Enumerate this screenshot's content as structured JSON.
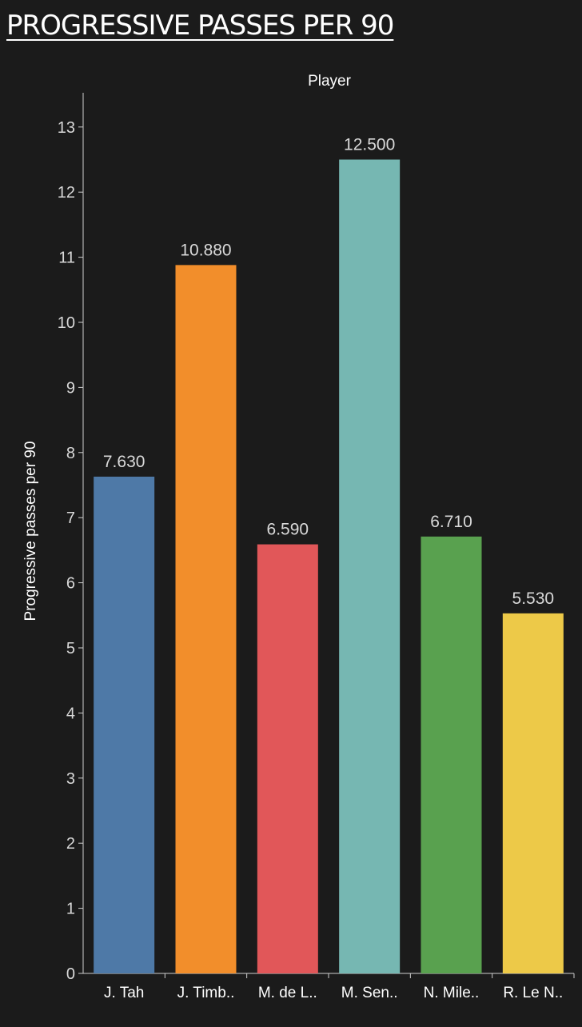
{
  "page": {
    "title": "PROGRESSIVE PASSES PER 90"
  },
  "chart_data": {
    "type": "bar",
    "title": "PROGRESSIVE PASSES PER 90",
    "xlabel": "Player",
    "ylabel": "Progressive passes per 90",
    "categories": [
      "J. Tah",
      "J. Timb..",
      "M. de L..",
      "M. Sen..",
      "N. Mile..",
      "R. Le N.."
    ],
    "values": [
      7.63,
      10.88,
      6.59,
      12.5,
      6.71,
      5.53
    ],
    "value_labels": [
      "7.630",
      "10.880",
      "6.590",
      "12.500",
      "6.710",
      "5.530"
    ],
    "colors": [
      "#4e79a7",
      "#f28e2b",
      "#e15759",
      "#76b7b2",
      "#59a14f",
      "#edc948"
    ],
    "ylim": [
      0,
      13.5
    ],
    "yticks": [
      0,
      1,
      2,
      3,
      4,
      5,
      6,
      7,
      8,
      9,
      10,
      11,
      12,
      13
    ],
    "grid": false,
    "legend": "none",
    "xlabel_position": "top"
  },
  "colors": {
    "background": "#1b1b1b",
    "text": "#ffffff",
    "muted_text": "#d9d9d9",
    "axis": "#cfcfcf"
  }
}
